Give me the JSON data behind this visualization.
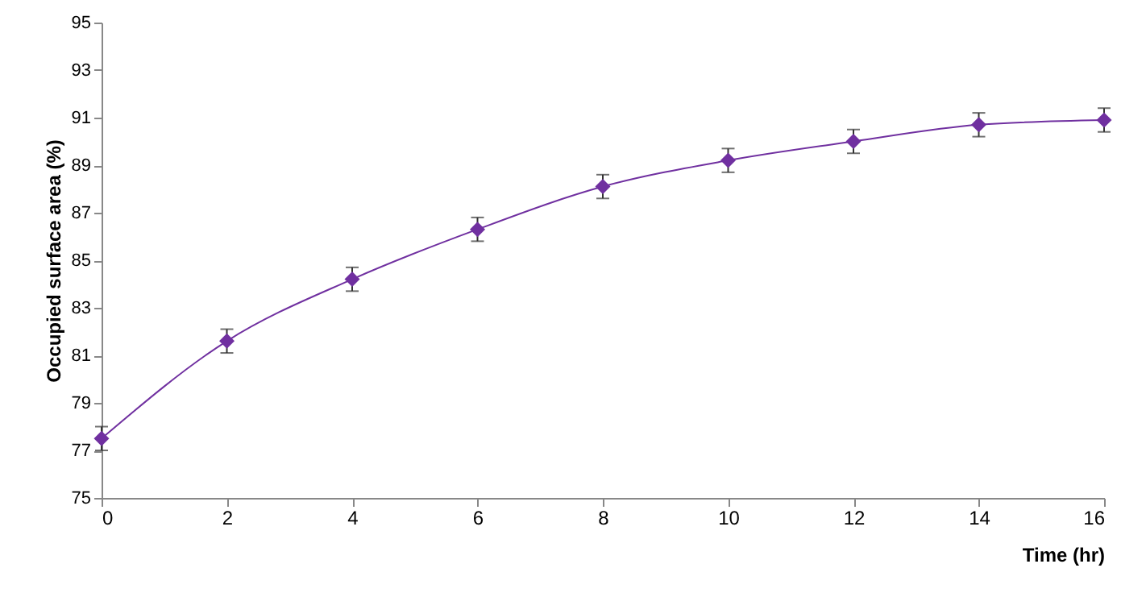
{
  "chart_data": {
    "type": "line",
    "xlabel": "Time (hr)",
    "ylabel": "Occupied surface area (%)",
    "x": [
      0,
      2,
      4,
      6,
      8,
      10,
      12,
      14,
      16
    ],
    "series": [
      {
        "color": "#7030a0",
        "values": [
          77.5,
          81.6,
          84.2,
          86.3,
          88.1,
          89.2,
          90.0,
          90.7,
          90.9
        ],
        "errors": [
          0.5,
          0.5,
          0.5,
          0.5,
          0.5,
          0.5,
          0.5,
          0.5,
          0.5
        ]
      }
    ],
    "xlim": [
      0,
      16
    ],
    "xticks": [
      0,
      2,
      4,
      6,
      8,
      10,
      12,
      14,
      16
    ],
    "ylim": [
      75,
      95
    ],
    "yticks": [
      75,
      77,
      79,
      81,
      83,
      85,
      87,
      89,
      91,
      93,
      95
    ],
    "marker": "diamond",
    "line_style": "solid",
    "grid": false
  }
}
